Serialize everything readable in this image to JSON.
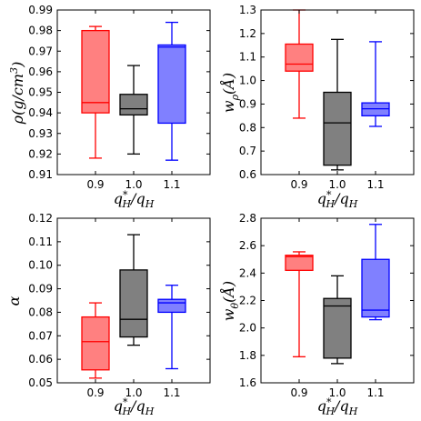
{
  "chart_data": [
    {
      "type": "box",
      "categories": [
        "0.9",
        "1.0",
        "1.1"
      ],
      "xlabel": "q*H/qH",
      "ylabel": "ρ(g/cm3)",
      "ylim": [
        0.91,
        0.99
      ],
      "yticks": [
        "0.91",
        "0.92",
        "0.93",
        "0.94",
        "0.95",
        "0.96",
        "0.97",
        "0.98",
        "0.99"
      ],
      "boxes": [
        {
          "min": 0.918,
          "q1": 0.94,
          "median": 0.945,
          "q3": 0.98,
          "max": 0.982,
          "color": "#ff0000",
          "fill": "#ff8080"
        },
        {
          "min": 0.92,
          "q1": 0.939,
          "median": 0.942,
          "q3": 0.949,
          "max": 0.963,
          "color": "#000000",
          "fill": "#808080"
        },
        {
          "min": 0.917,
          "q1": 0.935,
          "median": 0.972,
          "q3": 0.973,
          "max": 0.984,
          "color": "#0000ff",
          "fill": "#8080ff"
        }
      ]
    },
    {
      "type": "box",
      "categories": [
        "0.9",
        "1.0",
        "1.1"
      ],
      "xlabel": "q*H/qH",
      "ylabel": "wρ(Å)",
      "ylim": [
        0.6,
        1.3
      ],
      "yticks": [
        "0.6",
        "0.7",
        "0.8",
        "0.9",
        "1.0",
        "1.1",
        "1.2",
        "1.3"
      ],
      "boxes": [
        {
          "min": 0.84,
          "q1": 1.04,
          "median": 1.07,
          "q3": 1.155,
          "max": 1.3,
          "color": "#ff0000",
          "fill": "#ff8080"
        },
        {
          "min": 0.62,
          "q1": 0.64,
          "median": 0.82,
          "q3": 0.95,
          "max": 1.175,
          "color": "#000000",
          "fill": "#808080"
        },
        {
          "min": 0.805,
          "q1": 0.85,
          "median": 0.88,
          "q3": 0.905,
          "max": 1.165,
          "color": "#0000ff",
          "fill": "#8080ff"
        }
      ]
    },
    {
      "type": "box",
      "categories": [
        "0.9",
        "1.0",
        "1.1"
      ],
      "xlabel": "q*H/qH",
      "ylabel": "α",
      "ylim": [
        0.05,
        0.12
      ],
      "yticks": [
        "0.05",
        "0.06",
        "0.07",
        "0.08",
        "0.09",
        "0.10",
        "0.11",
        "0.12"
      ],
      "boxes": [
        {
          "min": 0.052,
          "q1": 0.0555,
          "median": 0.0675,
          "q3": 0.078,
          "max": 0.084,
          "color": "#ff0000",
          "fill": "#ff8080"
        },
        {
          "min": 0.066,
          "q1": 0.0695,
          "median": 0.077,
          "q3": 0.098,
          "max": 0.113,
          "color": "#000000",
          "fill": "#808080"
        },
        {
          "min": 0.056,
          "q1": 0.08,
          "median": 0.084,
          "q3": 0.0855,
          "max": 0.0915,
          "color": "#0000ff",
          "fill": "#8080ff"
        }
      ]
    },
    {
      "type": "box",
      "categories": [
        "0.9",
        "1.0",
        "1.1"
      ],
      "xlabel": "q*H/qH",
      "ylabel": "wθ(Å)",
      "ylim": [
        1.6,
        2.8
      ],
      "yticks": [
        "1.6",
        "1.8",
        "2.0",
        "2.2",
        "2.4",
        "2.6",
        "2.8"
      ],
      "boxes": [
        {
          "min": 1.79,
          "q1": 2.42,
          "median": 2.52,
          "q3": 2.53,
          "max": 2.555,
          "color": "#ff0000",
          "fill": "#ff8080"
        },
        {
          "min": 1.74,
          "q1": 1.78,
          "median": 2.16,
          "q3": 2.215,
          "max": 2.38,
          "color": "#000000",
          "fill": "#808080"
        },
        {
          "min": 2.06,
          "q1": 2.08,
          "median": 2.13,
          "q3": 2.5,
          "max": 2.755,
          "color": "#0000ff",
          "fill": "#8080ff"
        }
      ]
    }
  ]
}
